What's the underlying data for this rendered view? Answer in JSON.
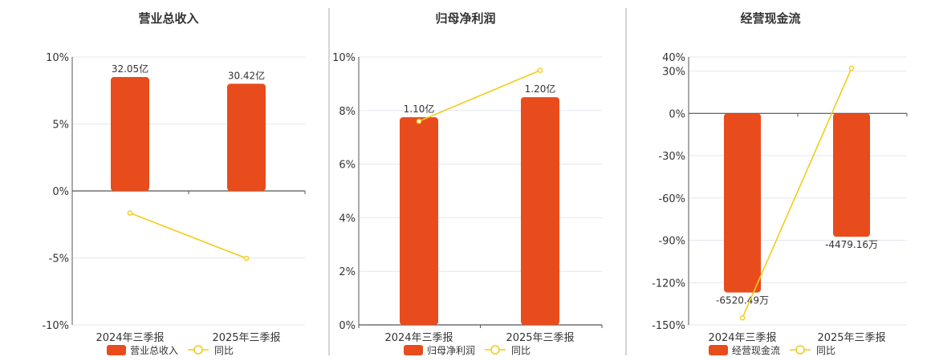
{
  "colors": {
    "bar": "#e84c1c",
    "line": "#f0cd1a",
    "grid": "#e4e7ef",
    "axis": "#555555",
    "separator": "#aaaaaa"
  },
  "chart_data": [
    {
      "type": "bar",
      "title": "营业总收入",
      "categories": [
        "2024年三季报",
        "2025年三季报"
      ],
      "series": [
        {
          "name": "营业总收入",
          "type": "bar",
          "values": [
            8.5,
            8.0
          ],
          "labels": [
            "32.05亿",
            "30.42亿"
          ]
        },
        {
          "name": "同比",
          "type": "line",
          "values": [
            -1.65,
            -5.03
          ]
        }
      ],
      "ylim": [
        -10,
        10
      ],
      "yticks": [
        10,
        5,
        0,
        -5,
        -10
      ],
      "ytick_labels": [
        "10%",
        "5%",
        "0%",
        "-5%",
        "-10%"
      ],
      "legend": "bottom"
    },
    {
      "type": "bar",
      "title": "归母净利润",
      "categories": [
        "2024年三季报",
        "2025年三季报"
      ],
      "series": [
        {
          "name": "归母净利润",
          "type": "bar",
          "values": [
            7.75,
            8.5
          ],
          "labels": [
            "1.10亿",
            "1.20亿"
          ]
        },
        {
          "name": "同比",
          "type": "line",
          "values": [
            7.6,
            9.5
          ]
        }
      ],
      "ylim": [
        0,
        10
      ],
      "yticks": [
        10,
        8,
        6,
        4,
        2,
        0
      ],
      "ytick_labels": [
        "10%",
        "8%",
        "6%",
        "4%",
        "2%",
        "0%"
      ],
      "legend": "bottom"
    },
    {
      "type": "bar",
      "title": "经营现金流",
      "categories": [
        "2024年三季报",
        "2025年三季报"
      ],
      "series": [
        {
          "name": "经营现金流",
          "type": "bar",
          "values": [
            -127,
            -87.5
          ],
          "labels": [
            "-6520.49万",
            "-4479.16万"
          ]
        },
        {
          "name": "同比",
          "type": "line",
          "values": [
            -145,
            32
          ]
        }
      ],
      "ylim": [
        -150,
        40
      ],
      "yticks": [
        40,
        30,
        0,
        -30,
        -60,
        -90,
        -120,
        -150
      ],
      "ytick_labels": [
        "40%",
        "30%",
        "0%",
        "-30%",
        "-60%",
        "-90%",
        "-120%",
        "-150%"
      ],
      "legend": "bottom"
    }
  ]
}
